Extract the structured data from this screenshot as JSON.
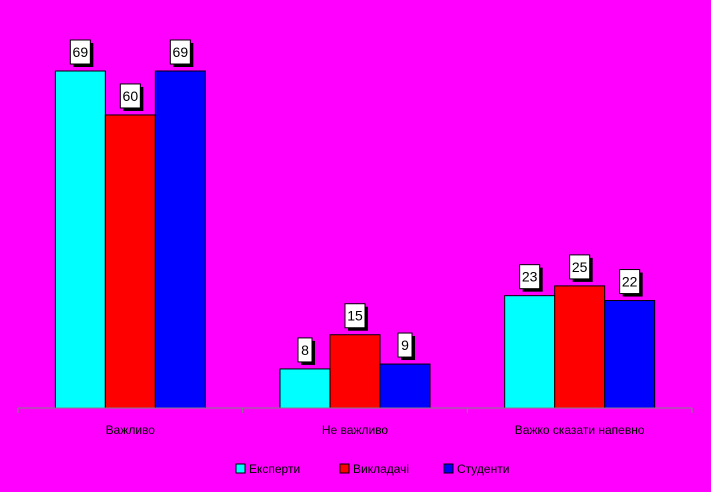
{
  "chart_data": {
    "type": "bar",
    "title": "",
    "xlabel": "",
    "ylabel": "",
    "ylim": [
      0,
      70
    ],
    "grid": false,
    "legend_position": "bottom",
    "categories": [
      "Важливо",
      "Не важливо",
      "Важко сказати напевно"
    ],
    "series": [
      {
        "name": "Експерти",
        "color": "#00ffff",
        "values": [
          69,
          8,
          23
        ]
      },
      {
        "name": "Викладачі",
        "color": "#ff0000",
        "values": [
          60,
          15,
          25
        ]
      },
      {
        "name": "Студенти",
        "color": "#0000ff",
        "values": [
          69,
          9,
          22
        ]
      }
    ]
  }
}
